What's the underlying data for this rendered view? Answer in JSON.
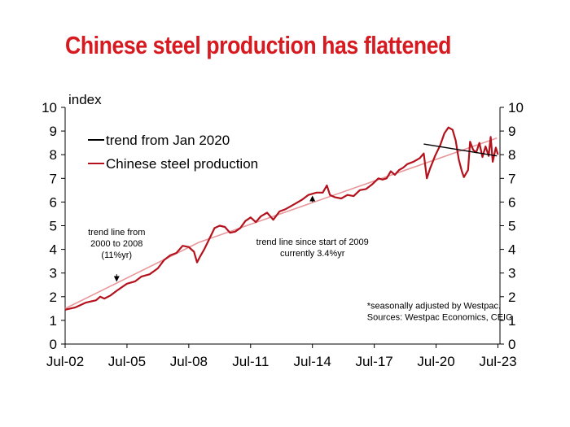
{
  "page": {
    "title": "Chinese steel production has flattened"
  },
  "chart_data": {
    "type": "line",
    "ylabel": "index",
    "ylim": [
      0,
      10
    ],
    "yticks": [
      0,
      1,
      2,
      3,
      4,
      5,
      6,
      7,
      8,
      9,
      10
    ],
    "xlim": [
      2002.5,
      2023.6
    ],
    "xticks": [
      {
        "v": 2002.5,
        "label": "Jul-02"
      },
      {
        "v": 2005.5,
        "label": "Jul-05"
      },
      {
        "v": 2008.5,
        "label": "Jul-08"
      },
      {
        "v": 2011.5,
        "label": "Jul-11"
      },
      {
        "v": 2014.5,
        "label": "Jul-14"
      },
      {
        "v": 2017.5,
        "label": "Jul-17"
      },
      {
        "v": 2020.5,
        "label": "Jul-20"
      },
      {
        "v": 2023.5,
        "label": "Jul-23"
      }
    ],
    "grid": false,
    "legend_position": "top-left",
    "legend": [
      {
        "label": "trend from Jan 2020",
        "color": "#000000"
      },
      {
        "label": "Chinese steel production",
        "color": "#b3121d"
      }
    ],
    "series": [
      {
        "name": "Chinese steel production",
        "color": "#b3121d",
        "points": [
          [
            2002.5,
            1.45
          ],
          [
            2003.0,
            1.55
          ],
          [
            2003.5,
            1.75
          ],
          [
            2004.0,
            1.85
          ],
          [
            2004.2,
            2.0
          ],
          [
            2004.4,
            1.92
          ],
          [
            2004.7,
            2.05
          ],
          [
            2005.0,
            2.25
          ],
          [
            2005.5,
            2.55
          ],
          [
            2005.9,
            2.65
          ],
          [
            2006.2,
            2.85
          ],
          [
            2006.6,
            2.95
          ],
          [
            2007.0,
            3.2
          ],
          [
            2007.3,
            3.55
          ],
          [
            2007.6,
            3.75
          ],
          [
            2007.9,
            3.85
          ],
          [
            2008.2,
            4.15
          ],
          [
            2008.5,
            4.1
          ],
          [
            2008.75,
            3.9
          ],
          [
            2008.9,
            3.45
          ],
          [
            2009.05,
            3.7
          ],
          [
            2009.25,
            4.0
          ],
          [
            2009.5,
            4.45
          ],
          [
            2009.75,
            4.9
          ],
          [
            2010.0,
            5.0
          ],
          [
            2010.25,
            4.95
          ],
          [
            2010.5,
            4.7
          ],
          [
            2010.75,
            4.75
          ],
          [
            2011.0,
            4.9
          ],
          [
            2011.25,
            5.2
          ],
          [
            2011.5,
            5.35
          ],
          [
            2011.75,
            5.15
          ],
          [
            2012.0,
            5.4
          ],
          [
            2012.3,
            5.55
          ],
          [
            2012.6,
            5.25
          ],
          [
            2012.9,
            5.6
          ],
          [
            2013.2,
            5.7
          ],
          [
            2013.5,
            5.85
          ],
          [
            2013.8,
            6.0
          ],
          [
            2014.0,
            6.1
          ],
          [
            2014.3,
            6.3
          ],
          [
            2014.7,
            6.4
          ],
          [
            2015.0,
            6.4
          ],
          [
            2015.2,
            6.7
          ],
          [
            2015.35,
            6.3
          ],
          [
            2015.6,
            6.2
          ],
          [
            2015.9,
            6.15
          ],
          [
            2016.2,
            6.3
          ],
          [
            2016.5,
            6.25
          ],
          [
            2016.8,
            6.5
          ],
          [
            2017.1,
            6.55
          ],
          [
            2017.4,
            6.75
          ],
          [
            2017.7,
            7.0
          ],
          [
            2017.9,
            6.95
          ],
          [
            2018.1,
            7.0
          ],
          [
            2018.3,
            7.3
          ],
          [
            2018.5,
            7.15
          ],
          [
            2018.7,
            7.35
          ],
          [
            2018.9,
            7.45
          ],
          [
            2019.1,
            7.6
          ],
          [
            2019.4,
            7.7
          ],
          [
            2019.7,
            7.85
          ],
          [
            2019.9,
            8.05
          ],
          [
            2020.05,
            7.0
          ],
          [
            2020.2,
            7.4
          ],
          [
            2020.45,
            7.95
          ],
          [
            2020.7,
            8.4
          ],
          [
            2020.9,
            8.9
          ],
          [
            2021.1,
            9.15
          ],
          [
            2021.3,
            9.05
          ],
          [
            2021.45,
            8.6
          ],
          [
            2021.6,
            7.8
          ],
          [
            2021.75,
            7.3
          ],
          [
            2021.85,
            7.05
          ],
          [
            2022.05,
            7.35
          ],
          [
            2022.15,
            8.55
          ],
          [
            2022.3,
            8.2
          ],
          [
            2022.45,
            8.1
          ],
          [
            2022.6,
            8.5
          ],
          [
            2022.75,
            7.9
          ],
          [
            2022.9,
            8.35
          ],
          [
            2023.05,
            7.95
          ],
          [
            2023.15,
            8.75
          ],
          [
            2023.25,
            7.7
          ],
          [
            2023.4,
            8.3
          ],
          [
            2023.5,
            8.0
          ]
        ]
      },
      {
        "name": "trend line since start of 2009",
        "color": "#e8979b",
        "points": [
          [
            2009.0,
            4.3
          ],
          [
            2023.45,
            8.7
          ]
        ]
      },
      {
        "name": "trend line from 2000 to 2008",
        "color": "#e8979b",
        "points": [
          [
            2002.5,
            1.5
          ],
          [
            2009.0,
            4.3
          ]
        ]
      },
      {
        "name": "trend from Jan 2020",
        "color": "#000000",
        "points": [
          [
            2019.9,
            8.45
          ],
          [
            2023.45,
            7.95
          ]
        ]
      }
    ],
    "annotations": [
      {
        "lines": [
          "trend line from",
          "2000 to 2008",
          "(11%yr)"
        ],
        "at": [
          2005.0,
          4.6
        ],
        "arrow": [
          [
            2005.0,
            2.95
          ],
          [
            2005.0,
            2.75
          ]
        ]
      },
      {
        "lines": [
          "trend line since start of 2009",
          "currently 3.4%yr"
        ],
        "at": [
          2014.5,
          4.2
        ],
        "arrow": [
          [
            2014.5,
            6.0
          ],
          [
            2014.5,
            6.15
          ]
        ]
      },
      {
        "lines": [
          "*seasonally adjusted by Westpac.",
          "Sources: Westpac Economics, CEIC"
        ],
        "at": [
          2017.15,
          1.5
        ],
        "align": "left"
      }
    ]
  }
}
